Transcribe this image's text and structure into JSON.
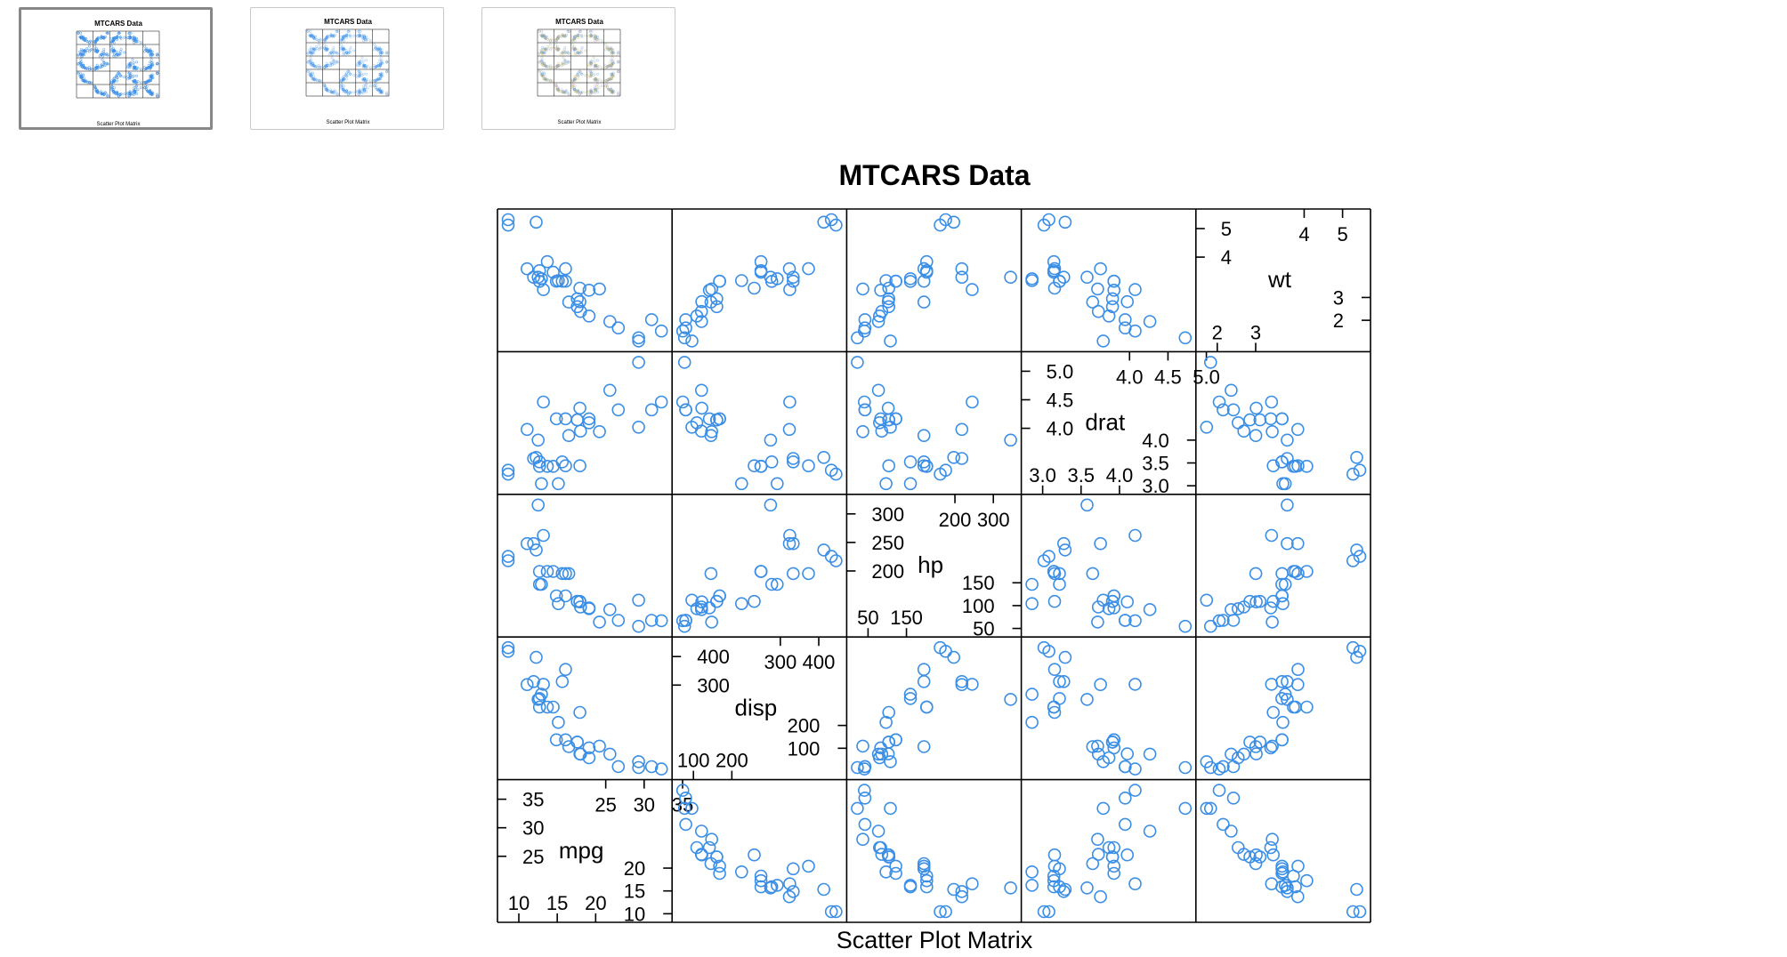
{
  "thumbnails": [
    {
      "id": "thumb-1",
      "title": "MTCARS Data",
      "caption": "Scatter Plot Matrix",
      "active": true,
      "variant": "blue"
    },
    {
      "id": "thumb-2",
      "title": "MTCARS Data",
      "caption": "Scatter Plot Matrix",
      "active": false,
      "variant": "faded"
    },
    {
      "id": "thumb-3",
      "title": "MTCARS Data",
      "caption": "Scatter Plot Matrix",
      "active": false,
      "variant": "mixed"
    }
  ],
  "colors": {
    "point": "#3a8ee6",
    "frame": "#000000",
    "thumb_border_active": "#888888",
    "thumb_border": "#c8c8c8"
  },
  "chart_data": {
    "type": "scatter",
    "title": "MTCARS Data",
    "xlabel": "Scatter Plot Matrix",
    "marker": "open-circle",
    "variables": [
      "mpg",
      "disp",
      "hp",
      "drat",
      "wt"
    ],
    "ranges": {
      "mpg": [
        10.4,
        33.9
      ],
      "disp": [
        71.1,
        472
      ],
      "hp": [
        52,
        335
      ],
      "drat": [
        2.76,
        4.93
      ],
      "wt": [
        1.513,
        5.424
      ]
    },
    "ticks": {
      "mpg": {
        "low": [
          "10",
          "15",
          "20"
        ],
        "high": [
          "25",
          "30",
          "35"
        ],
        "right": [
          "10",
          "15",
          "20"
        ],
        "left": [
          "25",
          "30",
          "35"
        ]
      },
      "disp": {
        "low": [
          "100",
          "200"
        ],
        "high": [
          "300",
          "400"
        ],
        "right": [
          "100",
          "200"
        ],
        "left": [
          "300",
          "400"
        ]
      },
      "hp": {
        "low": [
          "50",
          "150"
        ],
        "high": [
          "200",
          "300"
        ],
        "right": [
          "50",
          "100",
          "150"
        ],
        "left": [
          "200",
          "250",
          "300"
        ]
      },
      "drat": {
        "low": [
          "3.0",
          "3.5",
          "4.0"
        ],
        "high": [
          "4.0",
          "4.5",
          "5.0"
        ],
        "right": [
          "3.0",
          "3.5",
          "4.0"
        ],
        "left": [
          "4.0",
          "4.5",
          "5.0"
        ]
      },
      "wt": {
        "low": [
          "2",
          "3"
        ],
        "high": [
          "4",
          "5"
        ],
        "right": [
          "2",
          "3"
        ],
        "left": [
          "4",
          "5"
        ]
      }
    },
    "series": [
      {
        "name": "mpg",
        "values": [
          21,
          21,
          22.8,
          21.4,
          18.7,
          18.1,
          14.3,
          24.4,
          22.8,
          19.2,
          17.8,
          16.4,
          17.3,
          15.2,
          10.4,
          10.4,
          14.7,
          32.4,
          30.4,
          33.9,
          21.5,
          15.5,
          15.2,
          13.3,
          19.2,
          27.3,
          26,
          30.4,
          15.8,
          19.7,
          15,
          21.4
        ]
      },
      {
        "name": "disp",
        "values": [
          160,
          160,
          108,
          258,
          360,
          225,
          360,
          146.7,
          140.8,
          167.6,
          167.6,
          275.8,
          275.8,
          275.8,
          472,
          460,
          440,
          78.7,
          75.7,
          71.1,
          120.1,
          318,
          304,
          350,
          400,
          79,
          120.3,
          95.1,
          351,
          145,
          301,
          121
        ]
      },
      {
        "name": "hp",
        "values": [
          110,
          110,
          93,
          110,
          175,
          105,
          245,
          62,
          95,
          123,
          123,
          180,
          180,
          180,
          205,
          215,
          230,
          66,
          52,
          65,
          97,
          150,
          150,
          245,
          175,
          66,
          91,
          113,
          264,
          175,
          335,
          109
        ]
      },
      {
        "name": "drat",
        "values": [
          3.9,
          3.9,
          3.85,
          3.08,
          3.15,
          2.76,
          3.21,
          3.69,
          3.92,
          3.92,
          3.92,
          3.07,
          3.07,
          3.07,
          2.93,
          3,
          3.23,
          4.08,
          4.93,
          4.22,
          3.7,
          2.76,
          3.15,
          3.73,
          3.08,
          4.08,
          4.43,
          3.77,
          4.22,
          3.62,
          3.54,
          4.11
        ]
      },
      {
        "name": "wt",
        "values": [
          2.62,
          2.875,
          2.32,
          3.215,
          3.44,
          3.46,
          3.57,
          3.19,
          3.15,
          3.44,
          3.44,
          4.07,
          3.73,
          3.78,
          5.25,
          5.424,
          5.345,
          2.2,
          1.615,
          1.835,
          2.465,
          3.52,
          3.435,
          3.84,
          3.845,
          1.935,
          2.14,
          1.513,
          3.17,
          2.77,
          3.57,
          2.78
        ]
      }
    ]
  }
}
